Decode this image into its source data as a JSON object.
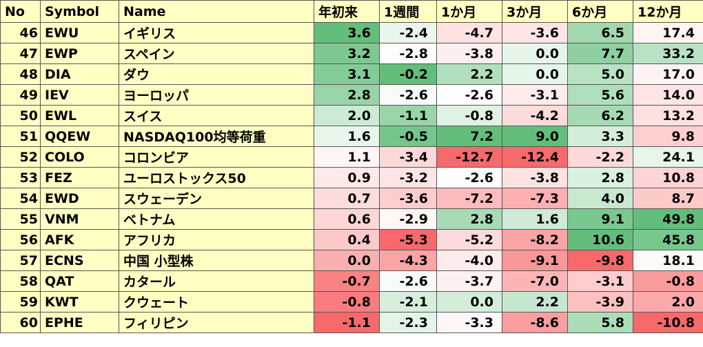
{
  "table": {
    "header": [
      "No",
      "Symbol",
      "Name",
      "年初来",
      "1週間",
      "1か月",
      "3か月",
      "6か月",
      "12か月"
    ],
    "rows": [
      [
        "46",
        "EWU",
        "イギリス",
        "3.6",
        "-2.4",
        "-4.7",
        "-3.6",
        "6.5",
        "17.4"
      ],
      [
        "47",
        "EWP",
        "スペイン",
        "3.2",
        "-2.8",
        "-3.8",
        "0.0",
        "7.7",
        "33.2"
      ],
      [
        "48",
        "DIA",
        "ダウ",
        "3.1",
        "-0.2",
        "2.2",
        "0.0",
        "5.0",
        "17.0"
      ],
      [
        "49",
        "IEV",
        "ヨーロッパ",
        "2.8",
        "-2.6",
        "-2.6",
        "-3.1",
        "5.6",
        "14.0"
      ],
      [
        "50",
        "EWL",
        "スイス",
        "2.0",
        "-1.1",
        "-0.8",
        "-4.2",
        "6.2",
        "13.2"
      ],
      [
        "51",
        "QQEW",
        "NASDAQ100均等荷重",
        "1.6",
        "-0.5",
        "7.2",
        "9.0",
        "3.3",
        "9.8"
      ],
      [
        "52",
        "COLO",
        "コロンビア",
        "1.1",
        "-3.4",
        "-12.7",
        "-12.4",
        "-2.2",
        "24.1"
      ],
      [
        "53",
        "FEZ",
        "ユーロストックス50",
        "0.9",
        "-3.2",
        "-2.6",
        "-3.8",
        "2.8",
        "10.8"
      ],
      [
        "54",
        "EWD",
        "スウェーデン",
        "0.7",
        "-3.6",
        "-7.2",
        "-7.3",
        "4.0",
        "8.7"
      ],
      [
        "55",
        "VNM",
        "ベトナム",
        "0.6",
        "-2.9",
        "2.8",
        "1.6",
        "9.1",
        "49.8"
      ],
      [
        "56",
        "AFK",
        "アフリカ",
        "0.4",
        "-5.3",
        "-5.2",
        "-8.2",
        "10.6",
        "45.8"
      ],
      [
        "57",
        "ECNS",
        "中国 小型株",
        "0.0",
        "-4.3",
        "-4.0",
        "-9.1",
        "-9.8",
        "18.1"
      ],
      [
        "58",
        "QAT",
        "カタール",
        "-0.7",
        "-2.6",
        "-3.7",
        "-7.0",
        "-3.1",
        "-0.8"
      ],
      [
        "59",
        "KWT",
        "クウェート",
        "-0.8",
        "-2.1",
        "0.0",
        "2.2",
        "-3.9",
        "2.0"
      ],
      [
        "60",
        "EPHE",
        "フィリピン",
        "-1.1",
        "-2.3",
        "-3.3",
        "-8.6",
        "5.8",
        "-10.8"
      ]
    ]
  }
}
